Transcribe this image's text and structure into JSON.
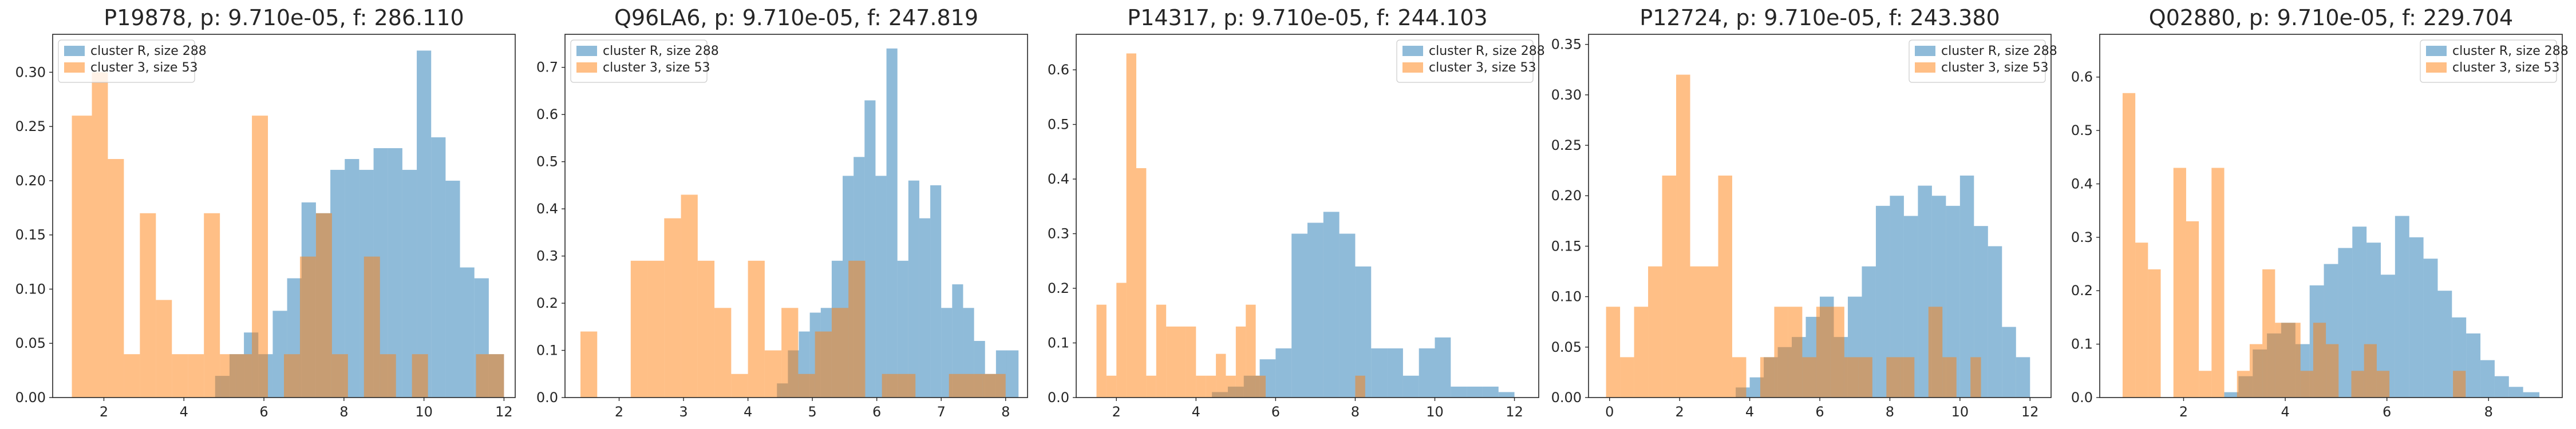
{
  "colors": {
    "cluster_r": "#1f77b4",
    "cluster_3": "#ff7f0e",
    "bar_alpha": 0.5
  },
  "chart_data": [
    {
      "type": "bar",
      "title": "P19878, p: 9.710e-05, f: 286.110",
      "xlabel": "",
      "ylabel": "",
      "xlim": [
        0.72,
        12.28
      ],
      "ylim": [
        0,
        0.335
      ],
      "xticks": [
        2,
        4,
        6,
        8,
        10,
        12
      ],
      "yticks": [
        0.0,
        0.05,
        0.1,
        0.15,
        0.2,
        0.25,
        0.3
      ],
      "ytick_labels": [
        "0.00",
        "0.05",
        "0.10",
        "0.15",
        "0.20",
        "0.25",
        "0.30"
      ],
      "legend_position": "top-left",
      "series": [
        {
          "name": "cluster R, size 288",
          "color_key": "cluster_r",
          "bin_edges": [
            4.78,
            5.14,
            5.5,
            5.86,
            6.22,
            6.58,
            6.94,
            7.3,
            7.66,
            8.02,
            8.38,
            8.74,
            9.1,
            9.46,
            9.82,
            10.18,
            10.54,
            10.9,
            11.26,
            11.62,
            12.0
          ],
          "values": [
            0.02,
            0.04,
            0.06,
            0.04,
            0.08,
            0.11,
            0.18,
            0.17,
            0.21,
            0.22,
            0.21,
            0.23,
            0.23,
            0.21,
            0.32,
            0.24,
            0.2,
            0.12,
            0.11,
            0.04
          ]
        },
        {
          "name": "cluster 3, size 53",
          "color_key": "cluster_3",
          "bin_edges": [
            1.2,
            1.7,
            2.1,
            2.5,
            2.9,
            3.3,
            3.7,
            4.1,
            4.5,
            4.9,
            5.3,
            5.7,
            6.1,
            6.5,
            6.9,
            7.3,
            7.7,
            8.1,
            8.5,
            8.9,
            9.3,
            9.7,
            10.1,
            10.5,
            10.9,
            11.3,
            11.7,
            12.0
          ],
          "values": [
            0.26,
            0.3,
            0.22,
            0.04,
            0.17,
            0.09,
            0.04,
            0.04,
            0.17,
            0.04,
            0.04,
            0.26,
            0.0,
            0.04,
            0.13,
            0.17,
            0.04,
            0.0,
            0.13,
            0.04,
            0.0,
            0.04,
            0.0,
            0.0,
            0.0,
            0.04,
            0.04
          ]
        }
      ]
    },
    {
      "type": "bar",
      "title": "Q96LA6, p: 9.710e-05, f: 247.819",
      "xlabel": "",
      "ylabel": "",
      "xlim": [
        1.16,
        8.34
      ],
      "ylim": [
        0,
        0.77
      ],
      "xticks": [
        2,
        3,
        4,
        5,
        6,
        7,
        8
      ],
      "yticks": [
        0.0,
        0.1,
        0.2,
        0.3,
        0.4,
        0.5,
        0.6,
        0.7
      ],
      "ytick_labels": [
        "0.0",
        "0.1",
        "0.2",
        "0.3",
        "0.4",
        "0.5",
        "0.6",
        "0.7"
      ],
      "legend_position": "top-left",
      "series": [
        {
          "name": "cluster R, size 288",
          "color_key": "cluster_r",
          "bin_edges": [
            4.45,
            4.62,
            4.79,
            4.96,
            5.13,
            5.3,
            5.47,
            5.64,
            5.81,
            5.98,
            6.15,
            6.32,
            6.49,
            6.66,
            6.83,
            7.0,
            7.17,
            7.34,
            7.51,
            7.68,
            7.85,
            8.02,
            8.2
          ],
          "values": [
            0.03,
            0.1,
            0.14,
            0.18,
            0.19,
            0.29,
            0.47,
            0.51,
            0.63,
            0.47,
            0.74,
            0.29,
            0.46,
            0.38,
            0.45,
            0.19,
            0.24,
            0.19,
            0.12,
            0.05,
            0.1,
            0.1
          ]
        },
        {
          "name": "cluster 3, size 53",
          "color_key": "cluster_3",
          "bin_edges": [
            1.4,
            1.66,
            1.92,
            2.18,
            2.44,
            2.7,
            2.96,
            3.22,
            3.48,
            3.74,
            4.0,
            4.26,
            4.52,
            4.78,
            5.04,
            5.3,
            5.56,
            5.82,
            6.08,
            6.34,
            6.6,
            6.86,
            7.12,
            7.38,
            7.64,
            8.0
          ],
          "values": [
            0.14,
            0.0,
            0.0,
            0.29,
            0.29,
            0.38,
            0.43,
            0.29,
            0.19,
            0.05,
            0.29,
            0.1,
            0.19,
            0.05,
            0.14,
            0.19,
            0.29,
            0.0,
            0.05,
            0.05,
            0.0,
            0.0,
            0.05,
            0.05,
            0.05
          ]
        }
      ]
    },
    {
      "type": "bar",
      "title": "P14317, p: 9.710e-05, f: 244.103",
      "xlabel": "",
      "ylabel": "",
      "xlim": [
        0.99,
        12.61
      ],
      "ylim": [
        0,
        0.665
      ],
      "xticks": [
        2,
        4,
        6,
        8,
        10,
        12
      ],
      "yticks": [
        0.0,
        0.1,
        0.2,
        0.3,
        0.4,
        0.5,
        0.6
      ],
      "ytick_labels": [
        "0.0",
        "0.1",
        "0.2",
        "0.3",
        "0.4",
        "0.5",
        "0.6"
      ],
      "legend_position": "top-right",
      "series": [
        {
          "name": "cluster R, size 288",
          "color_key": "cluster_r",
          "bin_edges": [
            4.4,
            4.8,
            5.2,
            5.6,
            6.0,
            6.4,
            6.8,
            7.2,
            7.6,
            8.0,
            8.4,
            8.8,
            9.2,
            9.6,
            10.0,
            10.4,
            10.8,
            11.2,
            11.6,
            12.0
          ],
          "values": [
            0.01,
            0.02,
            0.04,
            0.07,
            0.09,
            0.3,
            0.32,
            0.34,
            0.3,
            0.24,
            0.09,
            0.09,
            0.04,
            0.09,
            0.11,
            0.02,
            0.02,
            0.02,
            0.01
          ]
        },
        {
          "name": "cluster 3, size 53",
          "color_key": "cluster_3",
          "bin_edges": [
            1.5,
            1.75,
            2.0,
            2.25,
            2.5,
            2.75,
            3.0,
            3.25,
            3.5,
            3.75,
            4.0,
            4.25,
            4.5,
            4.75,
            5.0,
            5.25,
            5.5,
            5.75,
            6.0,
            6.25,
            6.5,
            6.75,
            7.0,
            7.25,
            7.5,
            7.75,
            8.0,
            8.25
          ],
          "values": [
            0.17,
            0.04,
            0.21,
            0.63,
            0.42,
            0.04,
            0.17,
            0.13,
            0.13,
            0.13,
            0.04,
            0.04,
            0.08,
            0.04,
            0.13,
            0.17,
            0.04,
            0.0,
            0.0,
            0.0,
            0.0,
            0.0,
            0.0,
            0.0,
            0.0,
            0.0,
            0.04
          ]
        }
      ]
    },
    {
      "type": "bar",
      "title": "P12724, p: 9.710e-05, f: 243.380",
      "xlabel": "",
      "ylabel": "",
      "xlim": [
        -0.6,
        12.6
      ],
      "ylim": [
        0,
        0.36
      ],
      "xticks": [
        0,
        2,
        4,
        6,
        8,
        10,
        12
      ],
      "yticks": [
        0.0,
        0.05,
        0.1,
        0.15,
        0.2,
        0.25,
        0.3,
        0.35
      ],
      "ytick_labels": [
        "0.00",
        "0.05",
        "0.10",
        "0.15",
        "0.20",
        "0.25",
        "0.30",
        "0.35"
      ],
      "legend_position": "top-right",
      "series": [
        {
          "name": "cluster R, size 288",
          "color_key": "cluster_r",
          "bin_edges": [
            3.6,
            4.0,
            4.4,
            4.8,
            5.2,
            5.6,
            6.0,
            6.4,
            6.8,
            7.2,
            7.6,
            8.0,
            8.4,
            8.8,
            9.2,
            9.6,
            10.0,
            10.4,
            10.8,
            11.2,
            11.6,
            12.0
          ],
          "values": [
            0.01,
            0.02,
            0.04,
            0.05,
            0.06,
            0.08,
            0.1,
            0.06,
            0.1,
            0.13,
            0.19,
            0.2,
            0.18,
            0.21,
            0.2,
            0.19,
            0.22,
            0.17,
            0.15,
            0.07,
            0.04
          ]
        },
        {
          "name": "cluster 3, size 53",
          "color_key": "cluster_3",
          "bin_edges": [
            -0.1,
            0.3,
            0.7,
            1.1,
            1.5,
            1.9,
            2.3,
            2.7,
            3.1,
            3.5,
            3.9,
            4.3,
            4.7,
            5.1,
            5.5,
            5.9,
            6.3,
            6.7,
            7.1,
            7.5,
            7.9,
            8.3,
            8.7,
            9.1,
            9.5,
            9.9,
            10.3,
            10.6
          ],
          "values": [
            0.09,
            0.04,
            0.09,
            0.13,
            0.22,
            0.32,
            0.13,
            0.13,
            0.22,
            0.04,
            0.0,
            0.04,
            0.09,
            0.09,
            0.04,
            0.09,
            0.09,
            0.04,
            0.04,
            0.0,
            0.04,
            0.04,
            0.0,
            0.09,
            0.04,
            0.0,
            0.04
          ]
        }
      ]
    },
    {
      "type": "bar",
      "title": "Q02880, p: 9.710e-05, f: 229.704",
      "xlabel": "",
      "ylabel": "",
      "xlim": [
        0.35,
        9.45
      ],
      "ylim": [
        0,
        0.68
      ],
      "xticks": [
        2,
        4,
        6,
        8
      ],
      "yticks": [
        0.0,
        0.1,
        0.2,
        0.3,
        0.4,
        0.5,
        0.6
      ],
      "ytick_labels": [
        "0.0",
        "0.1",
        "0.2",
        "0.3",
        "0.4",
        "0.5",
        "0.6"
      ],
      "legend_position": "top-right",
      "series": [
        {
          "name": "cluster R, size 288",
          "color_key": "cluster_r",
          "bin_edges": [
            2.8,
            3.08,
            3.36,
            3.64,
            3.92,
            4.2,
            4.48,
            4.76,
            5.04,
            5.32,
            5.6,
            5.88,
            6.16,
            6.44,
            6.72,
            7.0,
            7.28,
            7.56,
            7.84,
            8.12,
            8.4,
            8.68,
            9.0
          ],
          "values": [
            0.01,
            0.04,
            0.09,
            0.12,
            0.14,
            0.1,
            0.21,
            0.25,
            0.28,
            0.32,
            0.29,
            0.23,
            0.34,
            0.3,
            0.26,
            0.2,
            0.15,
            0.12,
            0.07,
            0.04,
            0.02,
            0.01
          ]
        },
        {
          "name": "cluster 3, size 53",
          "color_key": "cluster_3",
          "bin_edges": [
            0.8,
            1.05,
            1.3,
            1.55,
            1.8,
            2.05,
            2.3,
            2.55,
            2.8,
            3.05,
            3.3,
            3.55,
            3.8,
            4.05,
            4.3,
            4.55,
            4.8,
            5.05,
            5.3,
            5.55,
            5.8,
            6.05,
            6.3,
            6.55,
            6.8,
            7.05,
            7.3,
            7.55
          ],
          "values": [
            0.57,
            0.29,
            0.24,
            0.0,
            0.43,
            0.33,
            0.05,
            0.43,
            0.0,
            0.05,
            0.1,
            0.24,
            0.14,
            0.14,
            0.05,
            0.14,
            0.1,
            0.0,
            0.05,
            0.1,
            0.05,
            0.0,
            0.0,
            0.0,
            0.0,
            0.0,
            0.05
          ]
        }
      ]
    }
  ]
}
